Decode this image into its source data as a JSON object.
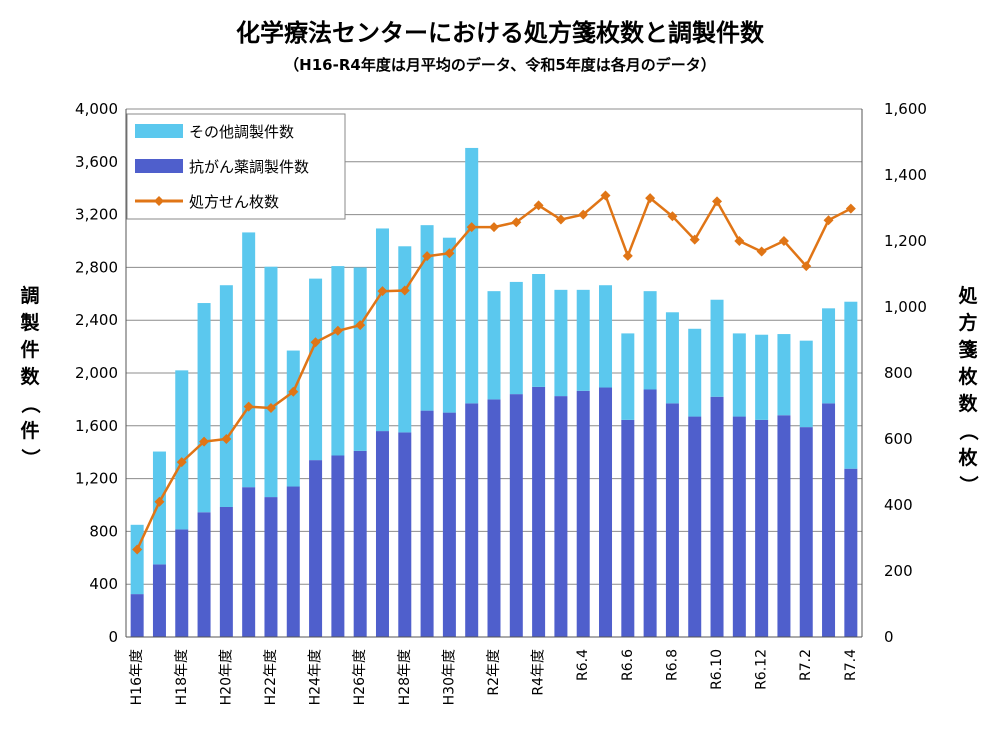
{
  "chart_data": {
    "type": "bar+line",
    "title": "化学療法センターにおける処方箋枚数と調製件数",
    "subtitle": "（H16-R4年度は月平均のデータ、令和5年度は各月のデータ）",
    "ylabel_left": "調製件数（件）",
    "ylabel_right": "処方箋枚数（枚）",
    "ylim_left": [
      0,
      4000
    ],
    "ylim_right": [
      0,
      1600
    ],
    "yticks_left": [
      "0",
      "400",
      "800",
      "1,200",
      "1,600",
      "2,000",
      "2,400",
      "2,800",
      "3,200",
      "3,600",
      "4,000"
    ],
    "yticks_right": [
      "0",
      "200",
      "400",
      "600",
      "800",
      "1,000",
      "1,200",
      "1,400",
      "1,600"
    ],
    "grid": true,
    "legend_placement": "top-left",
    "categories": [
      "H16年度",
      "",
      "H18年度",
      "",
      "H20年度",
      "",
      "H22年度",
      "",
      "H24年度",
      "",
      "H26年度",
      "",
      "H28年度",
      "",
      "H30年度",
      "",
      "R2年度",
      "",
      "R4年度",
      "",
      "R6.4",
      "",
      "R6.6",
      "",
      "R6.8",
      "",
      "R6.10",
      "",
      "R6.12",
      "",
      "R7.2",
      "",
      "R7.4"
    ],
    "series": [
      {
        "name": "その他調製件数",
        "kind": "bar-stack",
        "color": "#5BC8EE",
        "values": [
          525,
          855,
          1205,
          1585,
          1680,
          1930,
          1745,
          1030,
          1375,
          1435,
          1390,
          1535,
          1410,
          1405,
          1325,
          1935,
          820,
          850,
          855,
          805,
          765,
          775,
          655,
          745,
          690,
          665,
          735,
          630,
          645,
          615,
          655,
          720,
          1265
        ]
      },
      {
        "name": "抗がん薬調製件数",
        "kind": "bar-stack",
        "color": "#4F5FCC",
        "values": [
          325,
          550,
          815,
          945,
          985,
          1135,
          1060,
          1140,
          1340,
          1375,
          1410,
          1560,
          1550,
          1715,
          1700,
          1770,
          1800,
          1840,
          1895,
          1825,
          1865,
          1890,
          1645,
          1875,
          1770,
          1670,
          1820,
          1670,
          1645,
          1680,
          1590,
          1770,
          1275
        ]
      },
      {
        "name": "処方せん枚数",
        "kind": "line",
        "axis": "right",
        "color": "#E07516",
        "values": [
          265,
          410,
          530,
          592,
          600,
          698,
          694,
          743,
          893,
          928,
          945,
          1048,
          1050,
          1154,
          1163,
          1242,
          1242,
          1257,
          1308,
          1265,
          1280,
          1338,
          1155,
          1330,
          1275,
          1204,
          1320,
          1200,
          1168,
          1200,
          1124,
          1263,
          1298
        ]
      }
    ]
  }
}
